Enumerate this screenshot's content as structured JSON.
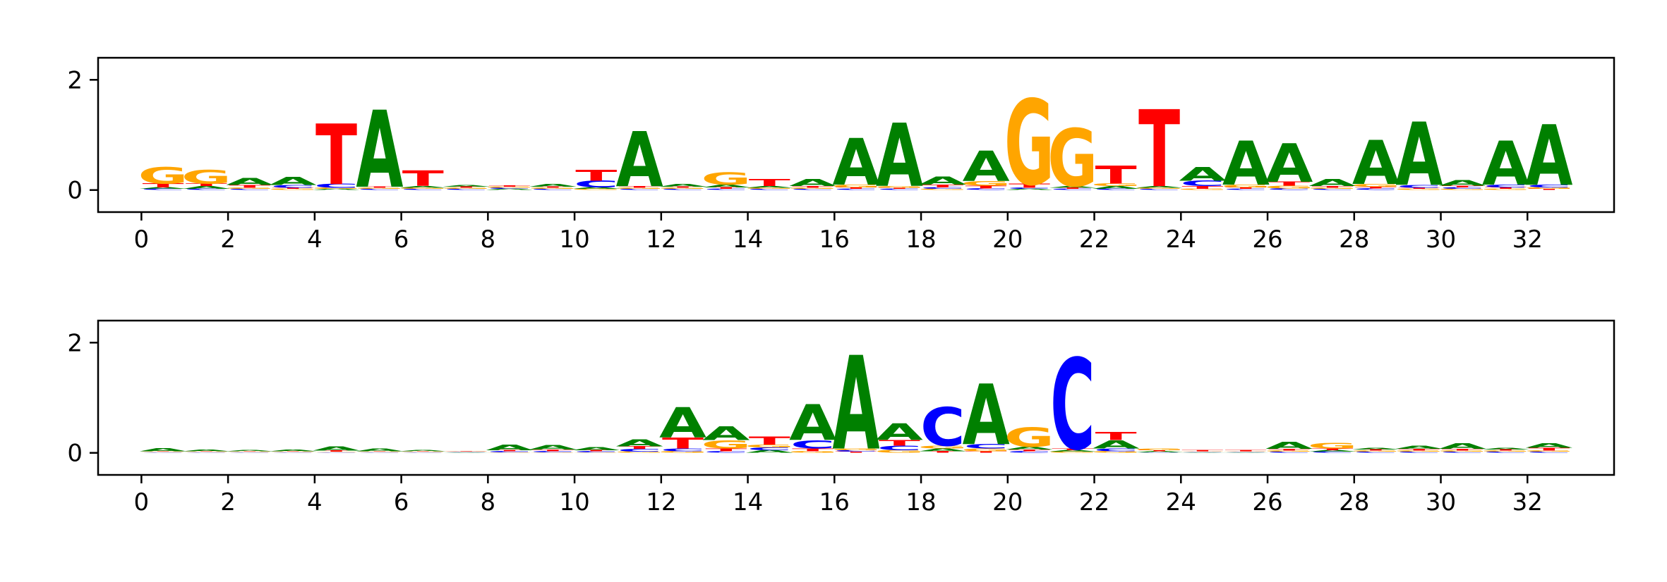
{
  "colors": {
    "A": "#008000",
    "C": "#0000ff",
    "G": "#ffa500",
    "T": "#ff0000"
  },
  "chart_data": [
    {
      "type": "sequence-logo",
      "xlim": [
        -1,
        34
      ],
      "ylim": [
        -0.4,
        2.4
      ],
      "xticks": [
        0,
        2,
        4,
        6,
        8,
        10,
        12,
        14,
        16,
        18,
        20,
        22,
        24,
        26,
        28,
        30,
        32
      ],
      "yticks": [
        0,
        2
      ],
      "positions": [
        {
          "x": 0.5,
          "A": 0.03,
          "C": 0.02,
          "G": 0.3,
          "T": 0.07
        },
        {
          "x": 1.5,
          "A": 0.05,
          "C": 0.02,
          "G": 0.25,
          "T": 0.05
        },
        {
          "x": 2.5,
          "A": 0.12,
          "C": 0.02,
          "G": 0.02,
          "T": 0.05
        },
        {
          "x": 3.5,
          "A": 0.15,
          "C": 0.05,
          "G": 0.02,
          "T": 0.02
        },
        {
          "x": 4.5,
          "A": 0.02,
          "C": 0.07,
          "G": 0.02,
          "T": 1.1
        },
        {
          "x": 5.5,
          "A": 1.4,
          "C": 0.02,
          "G": 0.02,
          "T": 0.02
        },
        {
          "x": 6.5,
          "A": 0.03,
          "C": 0.02,
          "G": 0.02,
          "T": 0.28
        },
        {
          "x": 7.5,
          "A": 0.03,
          "C": 0.02,
          "G": 0.02,
          "T": 0.02
        },
        {
          "x": 8.5,
          "A": 0.02,
          "C": 0.02,
          "G": 0.02,
          "T": 0.02
        },
        {
          "x": 9.5,
          "A": 0.05,
          "C": 0.02,
          "G": 0.02,
          "T": 0.02
        },
        {
          "x": 10.5,
          "A": 0.03,
          "C": 0.12,
          "G": 0.02,
          "T": 0.2
        },
        {
          "x": 11.5,
          "A": 1.0,
          "C": 0.02,
          "G": 0.02,
          "T": 0.03
        },
        {
          "x": 12.5,
          "A": 0.05,
          "C": 0.02,
          "G": 0.02,
          "T": 0.02
        },
        {
          "x": 13.5,
          "A": 0.05,
          "C": 0.02,
          "G": 0.22,
          "T": 0.03
        },
        {
          "x": 14.5,
          "A": 0.03,
          "C": 0.02,
          "G": 0.02,
          "T": 0.12
        },
        {
          "x": 15.5,
          "A": 0.12,
          "C": 0.02,
          "G": 0.02,
          "T": 0.03
        },
        {
          "x": 16.5,
          "A": 0.85,
          "C": 0.02,
          "G": 0.05,
          "T": 0.03
        },
        {
          "x": 17.5,
          "A": 1.15,
          "C": 0.02,
          "G": 0.03,
          "T": 0.02
        },
        {
          "x": 18.5,
          "A": 0.15,
          "C": 0.03,
          "G": 0.02,
          "T": 0.05
        },
        {
          "x": 19.5,
          "A": 0.55,
          "C": 0.03,
          "G": 0.08,
          "T": 0.05
        },
        {
          "x": 20.5,
          "A": 0.02,
          "C": 0.02,
          "G": 1.55,
          "T": 0.07
        },
        {
          "x": 21.5,
          "A": 0.03,
          "C": 0.02,
          "G": 1.05,
          "T": 0.02
        },
        {
          "x": 22.5,
          "A": 0.05,
          "C": 0.02,
          "G": 0.05,
          "T": 0.32
        },
        {
          "x": 23.5,
          "A": 0.03,
          "C": 0.02,
          "G": 0.02,
          "T": 1.4
        },
        {
          "x": 24.5,
          "A": 0.25,
          "C": 0.1,
          "G": 0.02,
          "T": 0.05
        },
        {
          "x": 25.5,
          "A": 0.8,
          "C": 0.02,
          "G": 0.05,
          "T": 0.03
        },
        {
          "x": 26.5,
          "A": 0.7,
          "C": 0.03,
          "G": 0.05,
          "T": 0.07
        },
        {
          "x": 27.5,
          "A": 0.12,
          "C": 0.02,
          "G": 0.02,
          "T": 0.03
        },
        {
          "x": 28.5,
          "A": 0.8,
          "C": 0.03,
          "G": 0.05,
          "T": 0.03
        },
        {
          "x": 29.5,
          "A": 1.15,
          "C": 0.05,
          "G": 0.02,
          "T": 0.02
        },
        {
          "x": 30.5,
          "A": 0.1,
          "C": 0.03,
          "G": 0.02,
          "T": 0.03
        },
        {
          "x": 31.5,
          "A": 0.8,
          "C": 0.05,
          "G": 0.02,
          "T": 0.03
        },
        {
          "x": 32.5,
          "A": 1.1,
          "C": 0.05,
          "G": 0.03,
          "T": 0.02
        }
      ]
    },
    {
      "type": "sequence-logo",
      "xlim": [
        -1,
        34
      ],
      "ylim": [
        -0.4,
        2.4
      ],
      "xticks": [
        0,
        2,
        4,
        6,
        8,
        10,
        12,
        14,
        16,
        18,
        20,
        22,
        24,
        26,
        28,
        30,
        32
      ],
      "yticks": [
        0,
        2
      ],
      "positions": [
        {
          "x": 0.5,
          "A": 0.06,
          "C": 0.01,
          "G": 0.01,
          "T": 0.01
        },
        {
          "x": 1.5,
          "A": 0.03,
          "C": 0.01,
          "G": 0.01,
          "T": 0.01
        },
        {
          "x": 2.5,
          "A": 0.02,
          "C": 0.01,
          "G": 0.01,
          "T": 0.01
        },
        {
          "x": 3.5,
          "A": 0.03,
          "C": 0.01,
          "G": 0.01,
          "T": 0.01
        },
        {
          "x": 4.5,
          "A": 0.07,
          "C": 0.01,
          "G": 0.01,
          "T": 0.02
        },
        {
          "x": 5.5,
          "A": 0.05,
          "C": 0.01,
          "G": 0.01,
          "T": 0.01
        },
        {
          "x": 6.5,
          "A": 0.02,
          "C": 0.01,
          "G": 0.01,
          "T": 0.01
        },
        {
          "x": 7.5,
          "A": 0.01,
          "C": 0.01,
          "G": 0.01,
          "T": 0.01
        },
        {
          "x": 8.5,
          "A": 0.1,
          "C": 0.02,
          "G": 0.01,
          "T": 0.02
        },
        {
          "x": 9.5,
          "A": 0.08,
          "C": 0.02,
          "G": 0.01,
          "T": 0.03
        },
        {
          "x": 10.5,
          "A": 0.06,
          "C": 0.02,
          "G": 0.01,
          "T": 0.02
        },
        {
          "x": 11.5,
          "A": 0.12,
          "C": 0.05,
          "G": 0.02,
          "T": 0.05
        },
        {
          "x": 12.5,
          "A": 0.55,
          "C": 0.05,
          "G": 0.03,
          "T": 0.2
        },
        {
          "x": 13.5,
          "A": 0.25,
          "C": 0.03,
          "G": 0.15,
          "T": 0.05
        },
        {
          "x": 14.5,
          "A": 0.05,
          "C": 0.05,
          "G": 0.05,
          "T": 0.15
        },
        {
          "x": 15.5,
          "A": 0.65,
          "C": 0.15,
          "G": 0.03,
          "T": 0.05
        },
        {
          "x": 16.5,
          "A": 1.7,
          "C": 0.03,
          "G": 0.03,
          "T": 0.02
        },
        {
          "x": 17.5,
          "A": 0.3,
          "C": 0.08,
          "G": 0.05,
          "T": 0.1
        },
        {
          "x": 18.5,
          "A": 0.05,
          "C": 0.7,
          "G": 0.05,
          "T": 0.03
        },
        {
          "x": 19.5,
          "A": 1.1,
          "C": 0.08,
          "G": 0.05,
          "T": 0.03
        },
        {
          "x": 20.5,
          "A": 0.05,
          "C": 0.03,
          "G": 0.35,
          "T": 0.03
        },
        {
          "x": 21.5,
          "A": 0.03,
          "C": 1.65,
          "G": 0.02,
          "T": 0.03
        },
        {
          "x": 22.5,
          "A": 0.15,
          "C": 0.05,
          "G": 0.03,
          "T": 0.15
        },
        {
          "x": 23.5,
          "A": 0.02,
          "C": 0.01,
          "G": 0.03,
          "T": 0.02
        },
        {
          "x": 24.5,
          "A": 0.01,
          "C": 0.01,
          "G": 0.01,
          "T": 0.02
        },
        {
          "x": 25.5,
          "A": 0.01,
          "C": 0.01,
          "G": 0.01,
          "T": 0.02
        },
        {
          "x": 26.5,
          "A": 0.12,
          "C": 0.02,
          "G": 0.02,
          "T": 0.03
        },
        {
          "x": 27.5,
          "A": 0.03,
          "C": 0.02,
          "G": 0.1,
          "T": 0.03
        },
        {
          "x": 28.5,
          "A": 0.03,
          "C": 0.02,
          "G": 0.02,
          "T": 0.02
        },
        {
          "x": 29.5,
          "A": 0.06,
          "C": 0.02,
          "G": 0.02,
          "T": 0.03
        },
        {
          "x": 30.5,
          "A": 0.1,
          "C": 0.02,
          "G": 0.02,
          "T": 0.03
        },
        {
          "x": 31.5,
          "A": 0.03,
          "C": 0.02,
          "G": 0.02,
          "T": 0.02
        },
        {
          "x": 32.5,
          "A": 0.08,
          "C": 0.02,
          "G": 0.02,
          "T": 0.05
        }
      ]
    }
  ]
}
